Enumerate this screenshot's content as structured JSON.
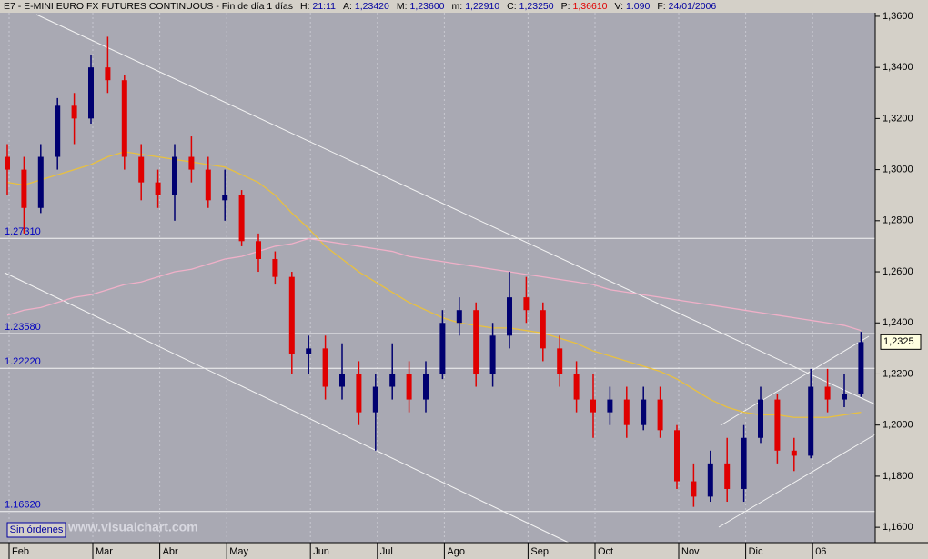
{
  "chart_data": {
    "type": "candlestick",
    "header": {
      "title": "E7 - E-MINI EURO FX FUTURES CONTINUOUS - Fin de día 1 días",
      "fields": [
        {
          "label": "H:",
          "value": "21:11"
        },
        {
          "label": "A:",
          "value": "1,23420"
        },
        {
          "label": "M:",
          "value": "1,23600"
        },
        {
          "label": "m:",
          "value": "1,22910"
        },
        {
          "label": "C:",
          "value": "1,23250"
        },
        {
          "label": "P:",
          "value": "1,36610"
        },
        {
          "label": "V:",
          "value": "1.090"
        },
        {
          "label": "F:",
          "value": "24/01/2006"
        }
      ]
    },
    "categories": [
      "Feb",
      null,
      null,
      null,
      null,
      "Mar",
      null,
      null,
      null,
      "Abr",
      null,
      null,
      null,
      "May",
      null,
      null,
      null,
      null,
      "Jun",
      null,
      null,
      null,
      "Jul",
      null,
      null,
      null,
      "Ago",
      null,
      null,
      null,
      null,
      "Sep",
      null,
      null,
      null,
      "Oct",
      null,
      null,
      null,
      null,
      "Nov",
      null,
      null,
      null,
      "Dic",
      null,
      null,
      null,
      "06",
      null,
      null,
      null
    ],
    "open": [
      1.305,
      1.3,
      1.285,
      1.305,
      1.325,
      1.32,
      1.34,
      1.335,
      1.305,
      1.295,
      1.29,
      1.305,
      1.3,
      1.288,
      1.29,
      1.272,
      1.265,
      1.258,
      1.228,
      1.23,
      1.215,
      1.22,
      1.205,
      1.215,
      1.22,
      1.21,
      1.22,
      1.24,
      1.245,
      1.22,
      1.235,
      1.25,
      1.245,
      1.23,
      1.22,
      1.21,
      1.205,
      1.21,
      1.2,
      1.21,
      1.198,
      1.178,
      1.172,
      1.185,
      1.175,
      1.195,
      1.21,
      1.19,
      1.188,
      1.215,
      1.21,
      1.212
    ],
    "high": [
      1.31,
      1.305,
      1.31,
      1.328,
      1.33,
      1.345,
      1.352,
      1.337,
      1.31,
      1.3,
      1.31,
      1.313,
      1.305,
      1.3,
      1.292,
      1.275,
      1.268,
      1.26,
      1.235,
      1.235,
      1.232,
      1.225,
      1.22,
      1.232,
      1.225,
      1.225,
      1.245,
      1.25,
      1.248,
      1.24,
      1.26,
      1.258,
      1.248,
      1.235,
      1.225,
      1.22,
      1.215,
      1.215,
      1.215,
      1.215,
      1.2,
      1.185,
      1.19,
      1.195,
      1.2,
      1.215,
      1.212,
      1.195,
      1.222,
      1.222,
      1.22,
      1.2365
    ],
    "low": [
      1.29,
      1.275,
      1.283,
      1.3,
      1.31,
      1.318,
      1.33,
      1.3,
      1.288,
      1.285,
      1.28,
      1.295,
      1.285,
      1.28,
      1.27,
      1.26,
      1.255,
      1.22,
      1.22,
      1.21,
      1.21,
      1.2,
      1.19,
      1.21,
      1.205,
      1.205,
      1.218,
      1.235,
      1.215,
      1.215,
      1.23,
      1.24,
      1.225,
      1.215,
      1.205,
      1.195,
      1.2,
      1.195,
      1.198,
      1.195,
      1.175,
      1.168,
      1.17,
      1.17,
      1.17,
      1.193,
      1.185,
      1.182,
      1.187,
      1.205,
      1.207,
      1.211
    ],
    "close": [
      1.3,
      1.285,
      1.305,
      1.325,
      1.32,
      1.34,
      1.335,
      1.305,
      1.295,
      1.29,
      1.305,
      1.3,
      1.288,
      1.29,
      1.272,
      1.265,
      1.258,
      1.228,
      1.23,
      1.215,
      1.22,
      1.205,
      1.215,
      1.22,
      1.21,
      1.22,
      1.24,
      1.245,
      1.22,
      1.235,
      1.25,
      1.245,
      1.23,
      1.22,
      1.21,
      1.205,
      1.21,
      1.2,
      1.21,
      1.198,
      1.178,
      1.172,
      1.185,
      1.175,
      1.195,
      1.21,
      1.19,
      1.188,
      1.215,
      1.21,
      1.212,
      1.2325
    ],
    "up_color": "#000070",
    "down_color": "#e00000",
    "overlays": [
      {
        "color": "#e8c040",
        "values": [
          1.295,
          1.294,
          1.296,
          1.298,
          1.3,
          1.302,
          1.305,
          1.307,
          1.306,
          1.305,
          1.304,
          1.303,
          1.302,
          1.301,
          1.298,
          1.295,
          1.29,
          1.283,
          1.277,
          1.27,
          1.265,
          1.26,
          1.256,
          1.252,
          1.248,
          1.245,
          1.242,
          1.24,
          1.239,
          1.238,
          1.238,
          1.237,
          1.236,
          1.234,
          1.232,
          1.229,
          1.227,
          1.225,
          1.223,
          1.221,
          1.218,
          1.214,
          1.21,
          1.207,
          1.205,
          1.204,
          1.204,
          1.203,
          1.203,
          1.203,
          1.204,
          1.205
        ]
      },
      {
        "color": "#f0b0c8",
        "values": [
          1.243,
          1.245,
          1.246,
          1.248,
          1.25,
          1.251,
          1.253,
          1.255,
          1.256,
          1.258,
          1.26,
          1.261,
          1.263,
          1.265,
          1.266,
          1.268,
          1.27,
          1.271,
          1.273,
          1.272,
          1.271,
          1.27,
          1.269,
          1.268,
          1.266,
          1.265,
          1.264,
          1.263,
          1.262,
          1.261,
          1.26,
          1.259,
          1.258,
          1.257,
          1.256,
          1.255,
          1.253,
          1.252,
          1.251,
          1.25,
          1.249,
          1.248,
          1.247,
          1.246,
          1.245,
          1.244,
          1.243,
          1.242,
          1.241,
          1.24,
          1.239,
          1.237
        ]
      }
    ],
    "hlines": [
      {
        "value": 1.2731,
        "label": "1.27310"
      },
      {
        "value": 1.2358,
        "label": "1.23580"
      },
      {
        "value": 1.2222,
        "label": "1.22220"
      },
      {
        "value": 1.1662,
        "label": "1.16620"
      }
    ],
    "last_price": {
      "value": 1.2325,
      "label": "1,2325"
    },
    "ylim": [
      1.154,
      1.3614
    ],
    "yticks": [
      {
        "value": 1.36,
        "label": "1,3600"
      },
      {
        "value": 1.34,
        "label": "1,3400"
      },
      {
        "value": 1.32,
        "label": "1,3200"
      },
      {
        "value": 1.3,
        "label": "1,3000"
      },
      {
        "value": 1.28,
        "label": "1,2800"
      },
      {
        "value": 1.26,
        "label": "1,2600"
      },
      {
        "value": 1.24,
        "label": "1,2400"
      },
      {
        "value": 1.22,
        "label": "1,2200"
      },
      {
        "value": 1.2,
        "label": "1,2000"
      },
      {
        "value": 1.18,
        "label": "1,1800"
      },
      {
        "value": 1.16,
        "label": "1,1600"
      }
    ],
    "grid": true,
    "button": "Sin órdenes",
    "watermark": "www.visualchart.com"
  }
}
